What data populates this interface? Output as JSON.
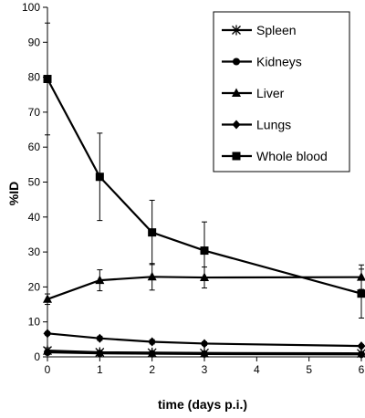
{
  "chart_data": {
    "type": "line",
    "title": "",
    "xlabel": "time (days p.i.)",
    "ylabel": "%ID",
    "x": [
      0,
      1,
      2,
      3,
      6
    ],
    "xlim": [
      0,
      6
    ],
    "ylim": [
      0,
      100
    ],
    "x_ticks": [
      "0",
      "1",
      "2",
      "3",
      "4",
      "5",
      "6"
    ],
    "y_ticks": [
      "0",
      "10",
      "20",
      "30",
      "40",
      "50",
      "60",
      "70",
      "80",
      "90",
      "100"
    ],
    "grid": false,
    "legend_position": "top-right",
    "series": [
      {
        "name": "Spleen",
        "marker": "star",
        "values": [
          1.8,
          1.3,
          1.2,
          1.1,
          1.0
        ],
        "errors": [
          0.8,
          0.4,
          0.3,
          0.3,
          0.3
        ]
      },
      {
        "name": "Kidneys",
        "marker": "circle",
        "values": [
          1.3,
          1.0,
          0.9,
          0.8,
          0.7
        ],
        "errors": [
          0.5,
          0.3,
          0.3,
          0.2,
          0.2
        ]
      },
      {
        "name": "Liver",
        "marker": "triangle",
        "values": [
          16.5,
          21.9,
          22.9,
          22.7,
          22.8
        ],
        "errors": [
          1.5,
          3.0,
          3.8,
          3.0,
          3.5
        ]
      },
      {
        "name": "Lungs",
        "marker": "diamond",
        "values": [
          6.7,
          5.3,
          4.3,
          3.8,
          3.1
        ],
        "errors": [
          0.5,
          0.6,
          0.6,
          0.5,
          0.4
        ]
      },
      {
        "name": "Whole blood",
        "marker": "square",
        "values": [
          79.5,
          51.5,
          35.6,
          30.4,
          18.1
        ],
        "errors": [
          16.0,
          12.5,
          9.2,
          8.2,
          7.0
        ]
      }
    ]
  }
}
